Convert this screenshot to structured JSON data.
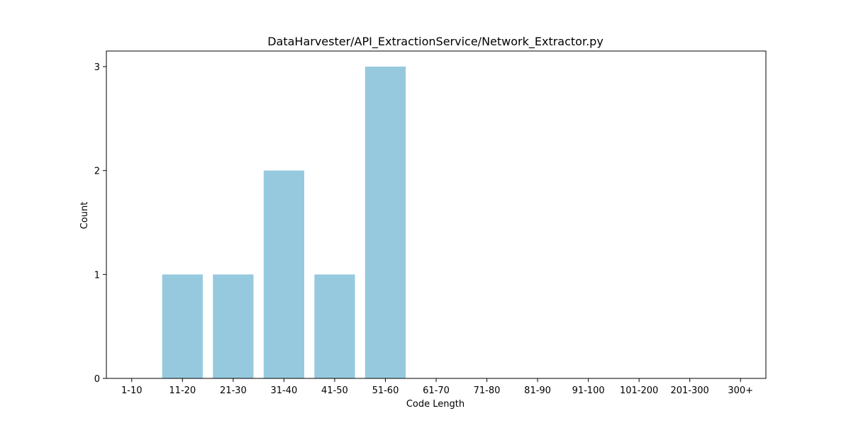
{
  "chart_data": {
    "type": "bar",
    "title": "DataHarvester/API_ExtractionService/Network_Extractor.py",
    "xlabel": "Code Length",
    "ylabel": "Count",
    "categories": [
      "1-10",
      "11-20",
      "21-30",
      "31-40",
      "41-50",
      "51-60",
      "61-70",
      "71-80",
      "81-90",
      "91-100",
      "101-200",
      "201-300",
      "300+"
    ],
    "values": [
      0,
      1,
      1,
      2,
      1,
      3,
      0,
      0,
      0,
      0,
      0,
      0,
      0
    ],
    "ylim": [
      0,
      3.15
    ],
    "yticks": [
      0,
      1,
      2,
      3
    ],
    "bar_color": "#96c9de",
    "grid": false,
    "legend": "none"
  }
}
